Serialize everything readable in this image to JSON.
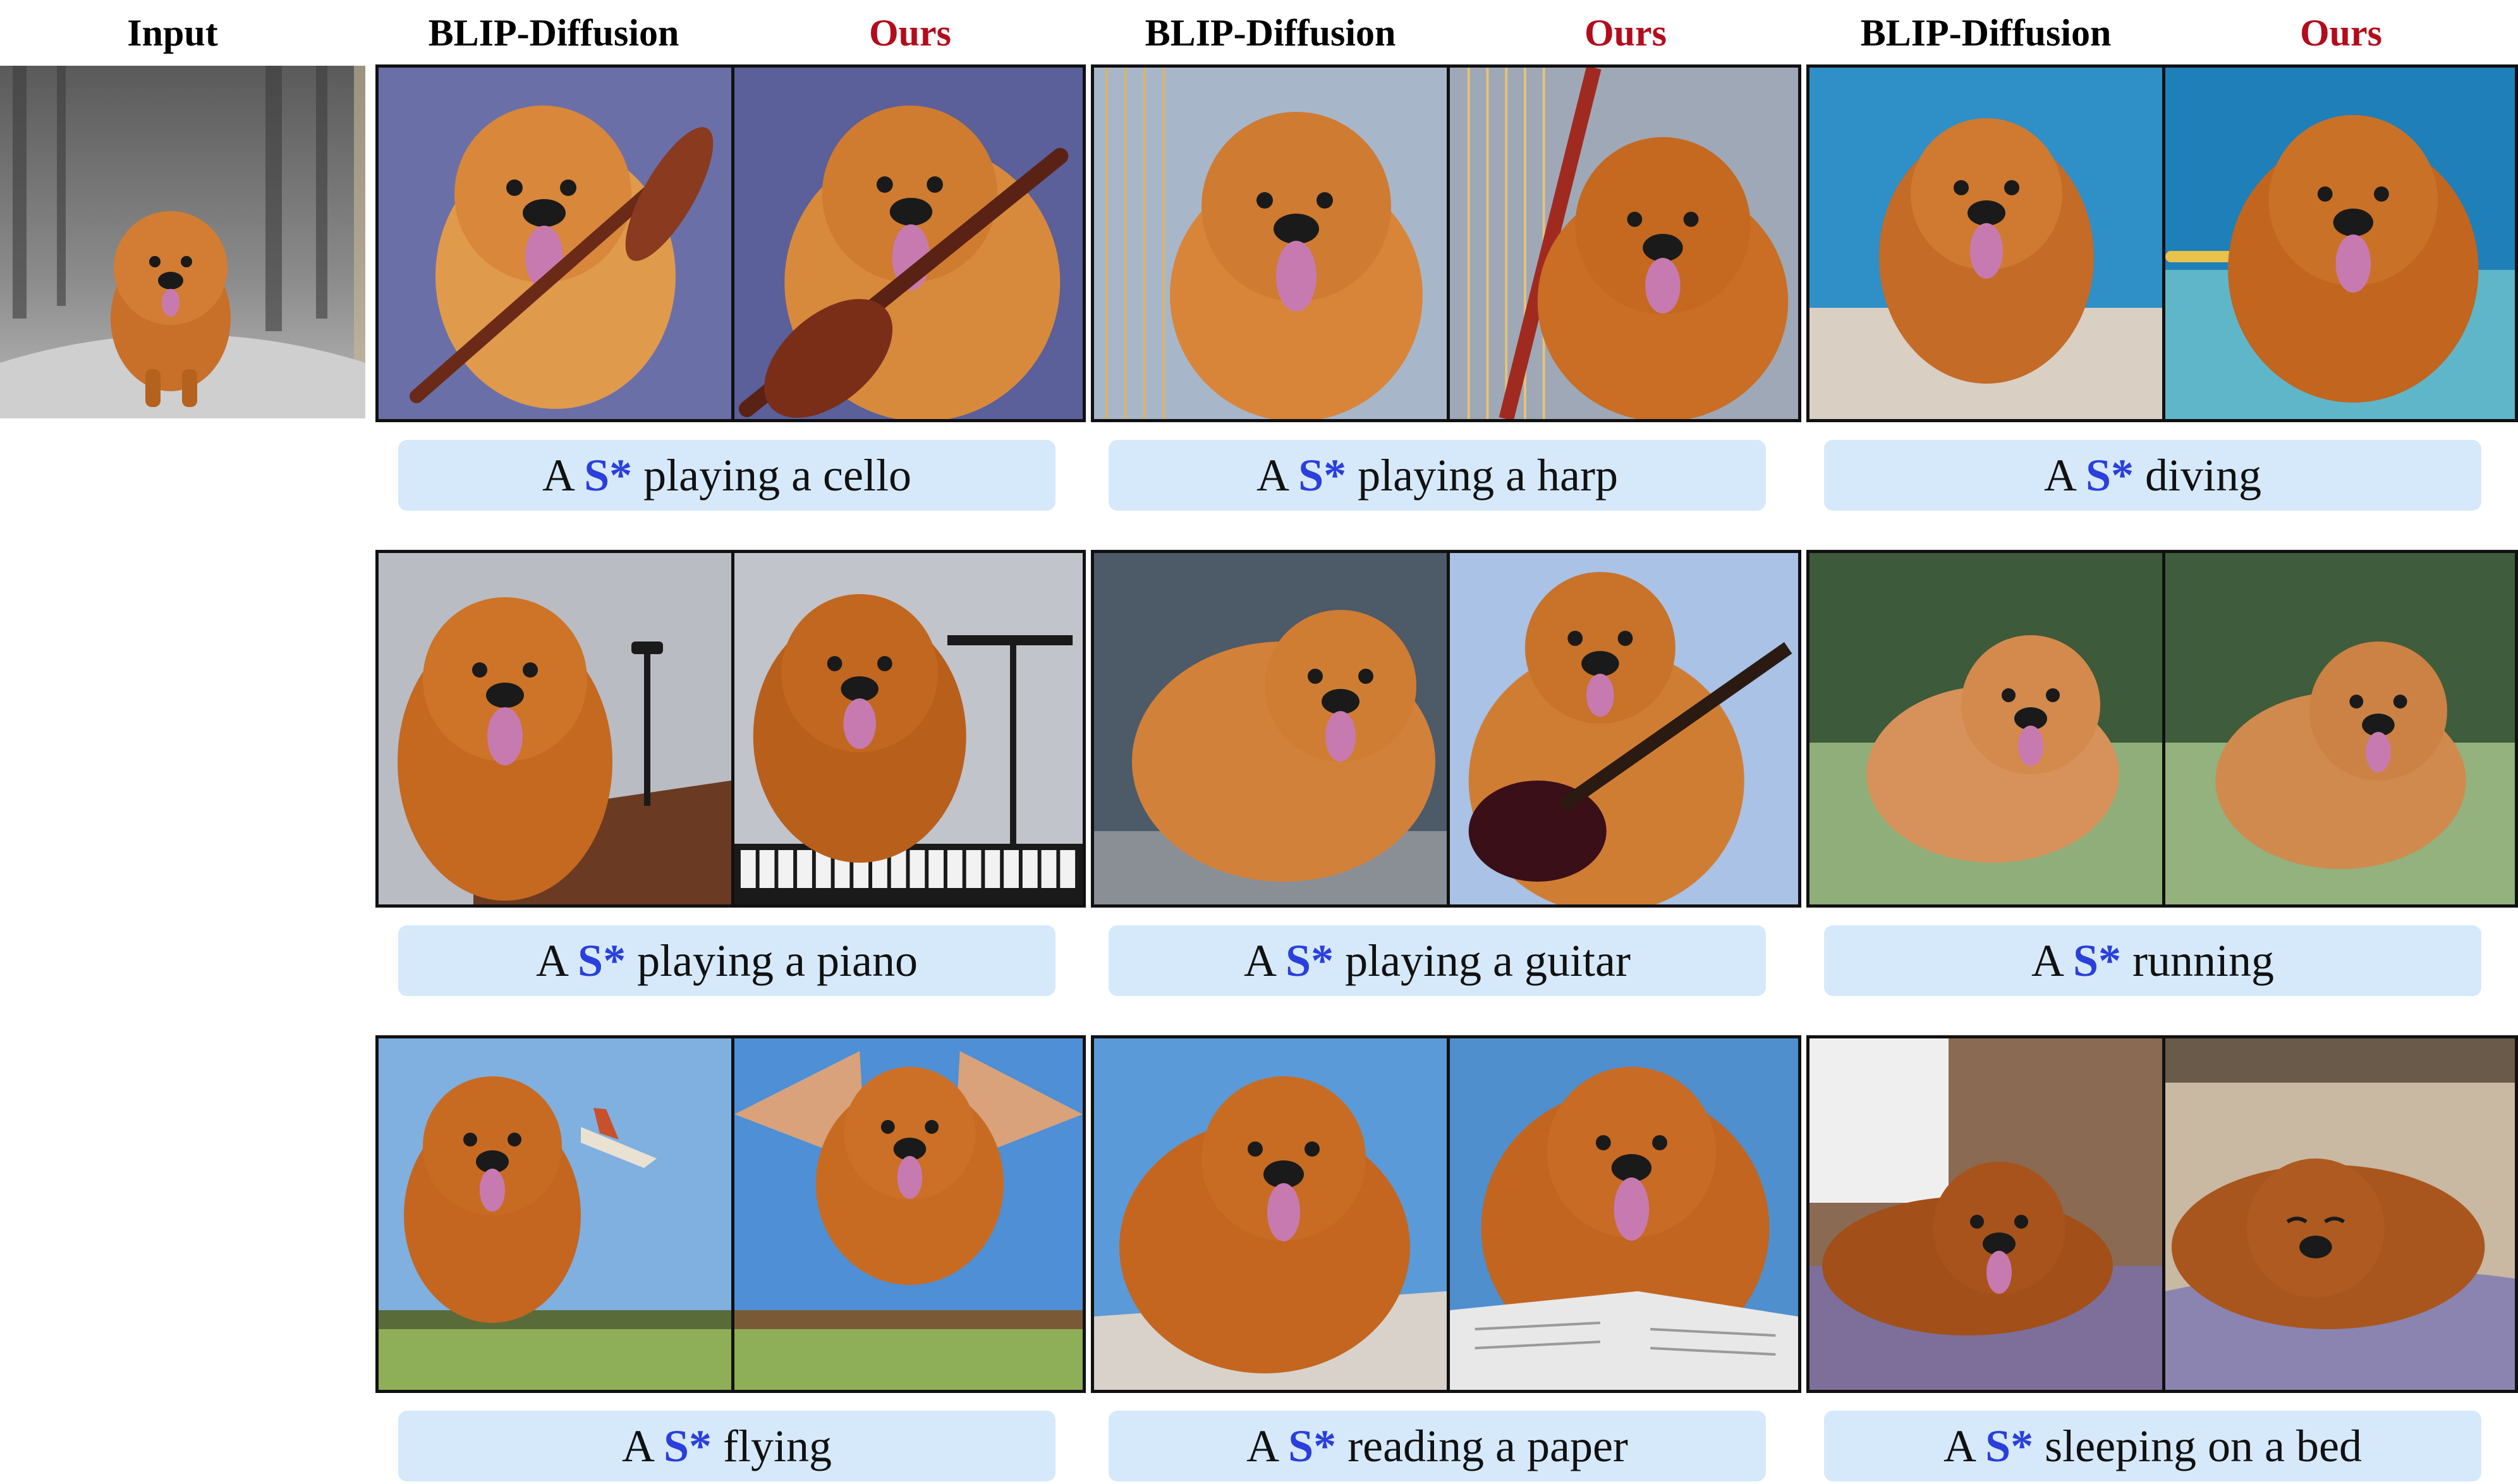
{
  "headers": {
    "input": "Input",
    "col1_baseline": "BLIP-Diffusion",
    "col1_ours": "Ours",
    "col2_baseline": "BLIP-Diffusion",
    "col2_ours": "Ours",
    "col3_baseline": "BLIP-Diffusion",
    "col3_ours": "Ours"
  },
  "caption_prefix": "A",
  "token": "S*",
  "colors": {
    "ours_header": "#b30c1c",
    "token": "#2a3fdc",
    "caption_bg": "#d6e9fb",
    "fur": "#c8702a",
    "fur_light": "#e09a4c",
    "tongue": "#c77ab0"
  },
  "captions": {
    "r1c1": "playing a cello",
    "r1c2": "playing a harp",
    "r1c3": "diving",
    "r2c1": "playing a piano",
    "r2c2": "playing a guitar",
    "r2c3": "running",
    "r3c1": "flying",
    "r3c2": "reading a paper",
    "r3c3": "sleeping on a bed"
  }
}
